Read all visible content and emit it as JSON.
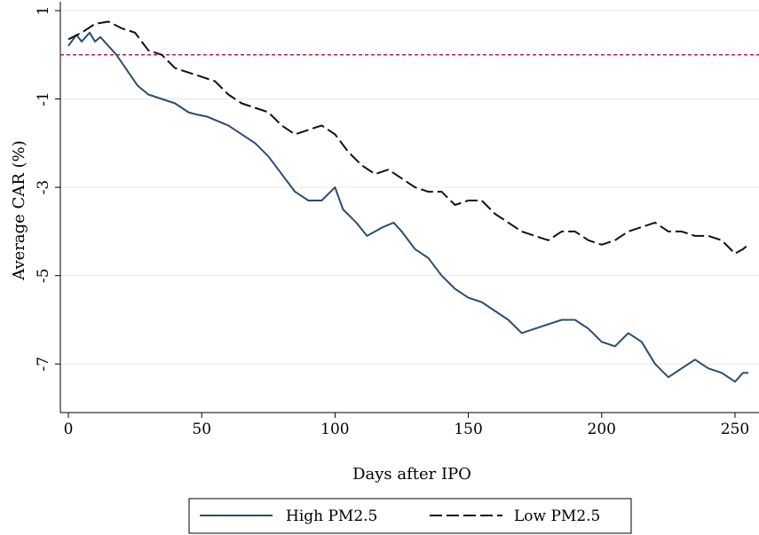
{
  "chart_data": {
    "type": "line",
    "title": "",
    "xlabel": "Days after IPO",
    "ylabel": "Average CAR (%)",
    "xlim": [
      -3,
      259
    ],
    "ylim": [
      -8.1,
      1.2
    ],
    "x_ticks": [
      0,
      50,
      100,
      150,
      200,
      250
    ],
    "x_tick_labels": [
      "0",
      "50",
      "100",
      "150",
      "200",
      "250"
    ],
    "y_ticks": [
      1,
      -1,
      -3,
      -5,
      -7
    ],
    "y_tick_labels": [
      "1",
      "-1",
      "-3",
      "-5",
      "-7"
    ],
    "grid": "horizontal",
    "reference_line": {
      "y": 0,
      "color": "#c2185b",
      "style": "dashed"
    },
    "legend": {
      "position": "bottom",
      "entries": [
        "High PM2.5",
        "Low PM2.5"
      ]
    },
    "series": [
      {
        "name": "High PM2.5",
        "color": "#2c4d6e",
        "style": "solid",
        "x": [
          0,
          3,
          5,
          8,
          10,
          12,
          15,
          18,
          22,
          26,
          30,
          35,
          40,
          45,
          48,
          52,
          56,
          60,
          65,
          70,
          75,
          80,
          85,
          90,
          95,
          100,
          103,
          108,
          112,
          118,
          122,
          125,
          130,
          135,
          140,
          145,
          150,
          155,
          160,
          165,
          170,
          175,
          180,
          185,
          190,
          195,
          200,
          205,
          210,
          215,
          220,
          225,
          230,
          235,
          240,
          245,
          250,
          253,
          255
        ],
        "values": [
          0.2,
          0.45,
          0.3,
          0.5,
          0.3,
          0.4,
          0.2,
          0.0,
          -0.35,
          -0.7,
          -0.9,
          -1.0,
          -1.1,
          -1.3,
          -1.35,
          -1.4,
          -1.5,
          -1.6,
          -1.8,
          -2.0,
          -2.3,
          -2.7,
          -3.1,
          -3.3,
          -3.3,
          -3.0,
          -3.5,
          -3.8,
          -4.1,
          -3.9,
          -3.8,
          -4.0,
          -4.4,
          -4.6,
          -5.0,
          -5.3,
          -5.5,
          -5.6,
          -5.8,
          -6.0,
          -6.3,
          -6.2,
          -6.1,
          -6.0,
          -6.0,
          -6.2,
          -6.5,
          -6.6,
          -6.3,
          -6.5,
          -7.0,
          -7.3,
          -7.1,
          -6.9,
          -7.1,
          -7.2,
          -7.4,
          -7.2,
          -7.2
        ]
      },
      {
        "name": "Low PM2.5",
        "color": "#111111",
        "style": "dashed",
        "x": [
          0,
          5,
          10,
          15,
          20,
          25,
          30,
          35,
          40,
          45,
          50,
          55,
          60,
          65,
          70,
          75,
          80,
          85,
          90,
          95,
          100,
          105,
          110,
          115,
          120,
          125,
          130,
          135,
          140,
          145,
          150,
          155,
          160,
          165,
          170,
          175,
          180,
          185,
          190,
          195,
          200,
          205,
          210,
          215,
          220,
          225,
          230,
          235,
          240,
          245,
          250,
          253,
          255
        ],
        "values": [
          0.35,
          0.5,
          0.7,
          0.75,
          0.6,
          0.5,
          0.1,
          0.0,
          -0.3,
          -0.4,
          -0.5,
          -0.6,
          -0.9,
          -1.1,
          -1.2,
          -1.3,
          -1.6,
          -1.8,
          -1.7,
          -1.6,
          -1.8,
          -2.2,
          -2.5,
          -2.7,
          -2.6,
          -2.8,
          -3.0,
          -3.1,
          -3.1,
          -3.4,
          -3.3,
          -3.3,
          -3.6,
          -3.8,
          -4.0,
          -4.1,
          -4.2,
          -4.0,
          -4.0,
          -4.2,
          -4.3,
          -4.2,
          -4.0,
          -3.9,
          -3.8,
          -4.0,
          -4.0,
          -4.1,
          -4.1,
          -4.2,
          -4.5,
          -4.4,
          -4.3
        ]
      }
    ]
  }
}
